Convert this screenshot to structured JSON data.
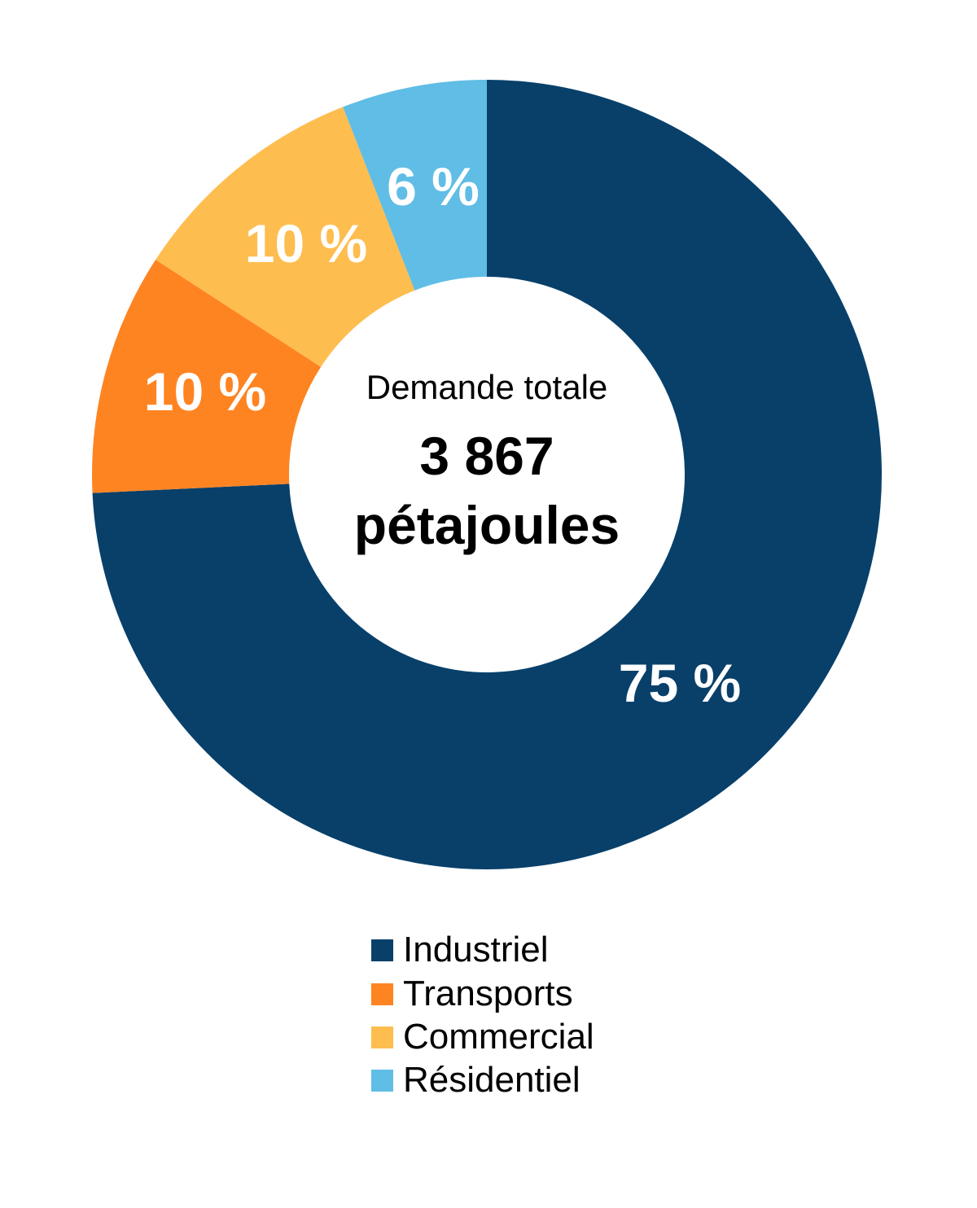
{
  "chart_data": {
    "type": "pie",
    "subtype": "donut",
    "title": "",
    "center_label": {
      "line1": "Demande totale",
      "line2": "3 867",
      "line3": "pétajoules"
    },
    "total": 3867,
    "unit": "pétajoules",
    "categories": [
      "Industriel",
      "Transports",
      "Commercial",
      "Résidentiel"
    ],
    "values": [
      75,
      10,
      10,
      6
    ],
    "value_labels": [
      "75 %",
      "10 %",
      "10 %",
      "6 %"
    ],
    "colors": [
      "#08406a",
      "#fe8422",
      "#febd4f",
      "#60bde5"
    ],
    "start_angle_deg": 0,
    "direction": "clockwise",
    "legend_position": "bottom"
  },
  "legend": {
    "items": [
      {
        "label": "Industriel",
        "color": "#08406a"
      },
      {
        "label": "Transports",
        "color": "#fe8422"
      },
      {
        "label": "Commercial",
        "color": "#febd4f"
      },
      {
        "label": "Résidentiel",
        "color": "#60bde5"
      }
    ]
  }
}
